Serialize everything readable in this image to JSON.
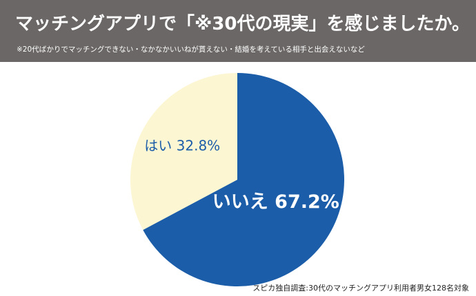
{
  "header": {
    "title": "マッチングアプリで「※30代の現実」を感じましたか。",
    "subtitle": "※20代ばかりでマッチングできない・なかなかいいねが貰えない・結婚を考えている相手と出会えないなど"
  },
  "chart_data": {
    "type": "pie",
    "slices": [
      {
        "label": "いいえ",
        "value": 67.2,
        "display": "いいえ 67.2%",
        "color": "#1b5da8",
        "text_color": "#ffffff"
      },
      {
        "label": "はい",
        "value": 32.8,
        "display": "はい 32.8%",
        "color": "#fdf6d3",
        "text_color": "#1b5da8"
      }
    ]
  },
  "source": "スピカ独自調査:30代のマッチングアプリ利用者男女128名対象",
  "colors": {
    "header_bg": "#6b6766",
    "background": "#ffffff"
  }
}
